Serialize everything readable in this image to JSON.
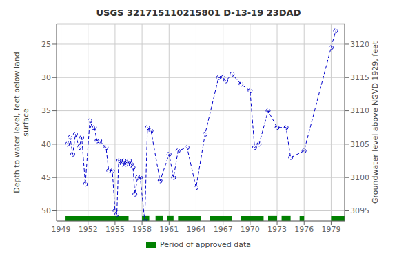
{
  "chart_data": {
    "type": "line",
    "title": "USGS 321715110215801 D-13-19 23DAD",
    "ylabel": "Depth to water level, feet below land\nsurface",
    "y2label": "Groundwater level above NGVD 1929, feet",
    "xlim": [
      1948.5,
      1980.5
    ],
    "xticks": [
      1949,
      1952,
      1955,
      1958,
      1961,
      1964,
      1967,
      1970,
      1973,
      1976,
      1979
    ],
    "ylim": [
      51.5,
      22
    ],
    "yticks": [
      25,
      30,
      35,
      40,
      45,
      50
    ],
    "y2lim": [
      3093.5,
      3123
    ],
    "y2ticks": [
      3095,
      3100,
      3105,
      3110,
      3115,
      3120
    ],
    "grid": true,
    "legend": "bottom",
    "color": "#0000cc",
    "marker": "circle",
    "line_style": "dashed",
    "x": [
      1949.7,
      1950.0,
      1950.3,
      1950.6,
      1951.0,
      1951.3,
      1951.7,
      1952.2,
      1952.5,
      1952.7,
      1953.0,
      1953.3,
      1954.0,
      1954.3,
      1954.7,
      1955.0,
      1955.2,
      1955.4,
      1955.6,
      1955.8,
      1956.0,
      1956.2,
      1956.4,
      1956.6,
      1956.8,
      1957.0,
      1957.2,
      1957.5,
      1957.8,
      1958.3,
      1958.6,
      1959.0,
      1960.0,
      1961.0,
      1961.5,
      1962.0,
      1963.0,
      1964.0,
      1965.0,
      1966.5,
      1967.0,
      1967.3,
      1968.0,
      1969.0,
      1970.0,
      1970.5,
      1971.0,
      1972.0,
      1973.0,
      1974.0,
      1974.5,
      1976.0,
      1979.0,
      1979.5
    ],
    "values": [
      40.0,
      39.0,
      41.5,
      38.5,
      40.5,
      39.0,
      46.0,
      36.5,
      37.5,
      37.5,
      39.5,
      39.5,
      40.5,
      44.0,
      44.0,
      50.0,
      50.5,
      42.5,
      42.5,
      43.0,
      42.5,
      43.0,
      43.0,
      42.5,
      43.0,
      43.5,
      47.5,
      45.0,
      45.0,
      51.5,
      37.5,
      38.0,
      45.5,
      41.5,
      45.0,
      41.0,
      40.5,
      46.5,
      38.5,
      30.0,
      30.0,
      30.5,
      29.5,
      31.0,
      32.0,
      40.5,
      40.0,
      35.0,
      37.5,
      37.5,
      42.0,
      41.0,
      25.5,
      23.0
    ],
    "bands": {
      "name": "Period of approved data",
      "color": "#008000",
      "ranges": [
        [
          1949.5,
          1956.5
        ],
        [
          1958.0,
          1958.8
        ],
        [
          1959.5,
          1960.3
        ],
        [
          1960.8,
          1961.5
        ],
        [
          1962.0,
          1964.5
        ],
        [
          1965.5,
          1968.0
        ],
        [
          1969.0,
          1971.5
        ],
        [
          1972.0,
          1973.0
        ],
        [
          1973.5,
          1974.5
        ],
        [
          1975.5,
          1976.0
        ],
        [
          1979.0,
          1980.5
        ]
      ]
    }
  }
}
